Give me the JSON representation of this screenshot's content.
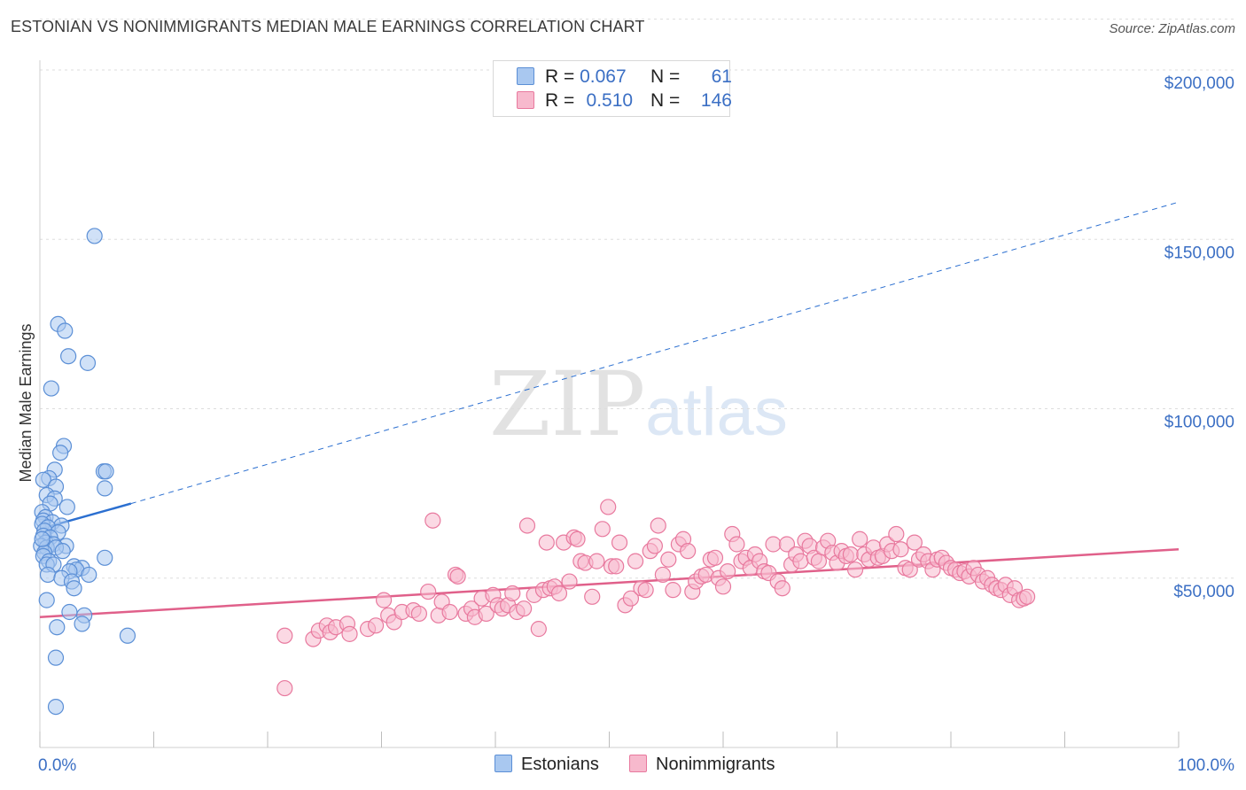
{
  "header": {
    "title": "ESTONIAN VS NONIMMIGRANTS MEDIAN MALE EARNINGS CORRELATION CHART",
    "source": "Source: ZipAtlas.com"
  },
  "watermark": {
    "zip": "ZIP",
    "atlas": "atlas"
  },
  "legend": {
    "rows": [
      {
        "r_label": "R =",
        "r_value": "0.067",
        "n_label": "N =",
        "n_value": "61"
      },
      {
        "r_label": "R =",
        "r_value": "0.510",
        "n_label": "N =",
        "n_value": "146"
      }
    ]
  },
  "bottom_legend": {
    "estonians": "Estonians",
    "nonimmigrants": "Nonimmigrants"
  },
  "colors": {
    "blue_fill": "#a9c8f0",
    "blue_stroke": "#5b8fd6",
    "blue_line": "#2b6fd0",
    "pink_fill": "#f7b9cd",
    "pink_stroke": "#e8799e",
    "pink_line": "#e0608a",
    "tick_text": "#3b6fc4",
    "grid": "#dddddd"
  },
  "chart_data": {
    "type": "scatter",
    "title": "ESTONIAN VS NONIMMIGRANTS MEDIAN MALE EARNINGS CORRELATION CHART",
    "ylabel": "Median Male Earnings",
    "xlabel": "",
    "xlim": [
      0,
      100
    ],
    "ylim": [
      0,
      215000
    ],
    "x_ticks": [
      0,
      10,
      20,
      30,
      40,
      50,
      60,
      70,
      80,
      90,
      100
    ],
    "x_tick_labels": [
      {
        "value": 0,
        "label": "0.0%"
      },
      {
        "value": 100,
        "label": "100.0%"
      }
    ],
    "y_ticks": [
      {
        "value": 50000,
        "label": "$50,000"
      },
      {
        "value": 100000,
        "label": "$100,000"
      },
      {
        "value": 150000,
        "label": "$150,000"
      },
      {
        "value": 200000,
        "label": "$200,000"
      }
    ],
    "grid": true,
    "series": [
      {
        "name": "Estonians",
        "color": "blue",
        "trend": {
          "solid": [
            [
              0,
              64500
            ],
            [
              8,
              72000
            ]
          ],
          "dashed": [
            [
              8,
              72000
            ],
            [
              100,
              161000
            ]
          ]
        },
        "points": [
          [
            4.8,
            151000
          ],
          [
            1.6,
            125000
          ],
          [
            2.2,
            123000
          ],
          [
            2.5,
            115500
          ],
          [
            4.2,
            113500
          ],
          [
            1.0,
            106000
          ],
          [
            2.1,
            89000
          ],
          [
            1.8,
            87000
          ],
          [
            1.3,
            82000
          ],
          [
            5.6,
            81500
          ],
          [
            5.8,
            81500
          ],
          [
            0.8,
            79500
          ],
          [
            0.3,
            79000
          ],
          [
            1.4,
            77000
          ],
          [
            5.7,
            76500
          ],
          [
            0.6,
            74500
          ],
          [
            1.3,
            73500
          ],
          [
            0.9,
            72000
          ],
          [
            2.4,
            71000
          ],
          [
            0.2,
            69500
          ],
          [
            0.5,
            68000
          ],
          [
            0.3,
            67000
          ],
          [
            1.1,
            66500
          ],
          [
            0.2,
            66000
          ],
          [
            1.9,
            65500
          ],
          [
            0.7,
            65000
          ],
          [
            0.4,
            64000
          ],
          [
            1.6,
            63500
          ],
          [
            0.3,
            62500
          ],
          [
            0.9,
            62000
          ],
          [
            0.5,
            60500
          ],
          [
            1.2,
            60000
          ],
          [
            0.1,
            59500
          ],
          [
            2.3,
            59500
          ],
          [
            0.6,
            59000
          ],
          [
            1.4,
            59000
          ],
          [
            2.0,
            58000
          ],
          [
            0.4,
            57500
          ],
          [
            0.3,
            56500
          ],
          [
            5.7,
            56000
          ],
          [
            0.8,
            55000
          ],
          [
            0.6,
            54000
          ],
          [
            1.2,
            54000
          ],
          [
            3.0,
            53500
          ],
          [
            3.7,
            53000
          ],
          [
            3.2,
            52500
          ],
          [
            2.6,
            52000
          ],
          [
            0.7,
            51000
          ],
          [
            4.3,
            51000
          ],
          [
            1.9,
            50000
          ],
          [
            2.8,
            49000
          ],
          [
            3.0,
            47000
          ],
          [
            0.6,
            43500
          ],
          [
            2.6,
            40000
          ],
          [
            3.9,
            39000
          ],
          [
            3.7,
            36500
          ],
          [
            1.5,
            35500
          ],
          [
            7.7,
            33000
          ],
          [
            1.4,
            26500
          ],
          [
            1.4,
            12000
          ],
          [
            0.2,
            61500
          ]
        ]
      },
      {
        "name": "Nonimmigrants",
        "color": "pink",
        "trend": {
          "solid": [
            [
              0,
              38500
            ],
            [
              100,
              58500
            ]
          ]
        },
        "points": [
          [
            21.5,
            17500
          ],
          [
            21.5,
            33000
          ],
          [
            24.0,
            32000
          ],
          [
            24.5,
            34500
          ],
          [
            25.2,
            36000
          ],
          [
            25.5,
            34000
          ],
          [
            26.0,
            35500
          ],
          [
            27.0,
            36500
          ],
          [
            27.2,
            33500
          ],
          [
            28.8,
            35000
          ],
          [
            29.5,
            36000
          ],
          [
            30.2,
            43500
          ],
          [
            30.6,
            39000
          ],
          [
            31.1,
            37000
          ],
          [
            31.8,
            40000
          ],
          [
            32.8,
            40500
          ],
          [
            33.3,
            39500
          ],
          [
            34.1,
            46000
          ],
          [
            34.5,
            67000
          ],
          [
            35.0,
            39000
          ],
          [
            35.3,
            43000
          ],
          [
            36.0,
            40000
          ],
          [
            36.5,
            51000
          ],
          [
            36.7,
            50500
          ],
          [
            37.4,
            39500
          ],
          [
            37.9,
            41000
          ],
          [
            38.2,
            38500
          ],
          [
            38.8,
            44000
          ],
          [
            39.2,
            39500
          ],
          [
            39.8,
            45000
          ],
          [
            40.2,
            42000
          ],
          [
            40.6,
            41000
          ],
          [
            41.1,
            42000
          ],
          [
            41.5,
            45500
          ],
          [
            41.9,
            40000
          ],
          [
            42.5,
            41000
          ],
          [
            42.8,
            65500
          ],
          [
            43.4,
            45000
          ],
          [
            43.8,
            35000
          ],
          [
            44.2,
            46500
          ],
          [
            44.5,
            60500
          ],
          [
            44.8,
            47000
          ],
          [
            45.2,
            47500
          ],
          [
            45.6,
            45500
          ],
          [
            46.0,
            60500
          ],
          [
            46.5,
            49000
          ],
          [
            46.9,
            62000
          ],
          [
            47.2,
            61500
          ],
          [
            47.5,
            55000
          ],
          [
            47.9,
            54500
          ],
          [
            48.5,
            44500
          ],
          [
            48.9,
            55000
          ],
          [
            49.4,
            64500
          ],
          [
            49.9,
            71000
          ],
          [
            50.2,
            53500
          ],
          [
            50.6,
            53500
          ],
          [
            50.9,
            60500
          ],
          [
            51.4,
            42000
          ],
          [
            51.9,
            44000
          ],
          [
            52.3,
            55000
          ],
          [
            52.8,
            47000
          ],
          [
            53.2,
            46500
          ],
          [
            53.6,
            58000
          ],
          [
            54.0,
            59500
          ],
          [
            54.3,
            65500
          ],
          [
            54.7,
            51000
          ],
          [
            55.2,
            55500
          ],
          [
            55.6,
            46500
          ],
          [
            56.1,
            60000
          ],
          [
            56.5,
            61500
          ],
          [
            56.9,
            58000
          ],
          [
            57.3,
            46000
          ],
          [
            57.6,
            49000
          ],
          [
            58.1,
            50500
          ],
          [
            58.5,
            51000
          ],
          [
            58.9,
            55500
          ],
          [
            59.3,
            56000
          ],
          [
            59.6,
            50000
          ],
          [
            60.0,
            47500
          ],
          [
            60.4,
            52000
          ],
          [
            60.8,
            63000
          ],
          [
            61.2,
            60000
          ],
          [
            61.6,
            55000
          ],
          [
            62.0,
            56000
          ],
          [
            62.4,
            53000
          ],
          [
            62.8,
            57000
          ],
          [
            63.2,
            55000
          ],
          [
            63.6,
            52000
          ],
          [
            64.0,
            51500
          ],
          [
            64.4,
            60000
          ],
          [
            64.8,
            49000
          ],
          [
            65.2,
            47000
          ],
          [
            65.6,
            60000
          ],
          [
            66.0,
            54000
          ],
          [
            66.4,
            57000
          ],
          [
            66.8,
            55000
          ],
          [
            67.2,
            61000
          ],
          [
            67.6,
            59500
          ],
          [
            68.0,
            56000
          ],
          [
            68.4,
            55000
          ],
          [
            68.8,
            59000
          ],
          [
            69.2,
            61000
          ],
          [
            69.6,
            57500
          ],
          [
            70.0,
            54500
          ],
          [
            70.4,
            58000
          ],
          [
            70.8,
            56500
          ],
          [
            71.2,
            57000
          ],
          [
            71.6,
            52500
          ],
          [
            72.0,
            61500
          ],
          [
            72.4,
            57000
          ],
          [
            72.8,
            55500
          ],
          [
            73.2,
            59000
          ],
          [
            73.6,
            56000
          ],
          [
            74.0,
            56500
          ],
          [
            74.4,
            60000
          ],
          [
            74.8,
            58000
          ],
          [
            75.2,
            63000
          ],
          [
            75.6,
            58500
          ],
          [
            76.0,
            53000
          ],
          [
            76.4,
            52500
          ],
          [
            76.8,
            60500
          ],
          [
            77.2,
            55500
          ],
          [
            77.6,
            57000
          ],
          [
            78.0,
            55000
          ],
          [
            78.4,
            52500
          ],
          [
            78.8,
            55500
          ],
          [
            79.2,
            56000
          ],
          [
            79.6,
            54500
          ],
          [
            80.0,
            53000
          ],
          [
            80.4,
            52500
          ],
          [
            80.8,
            51500
          ],
          [
            81.2,
            52000
          ],
          [
            81.6,
            50500
          ],
          [
            82.0,
            53000
          ],
          [
            82.4,
            51000
          ],
          [
            82.8,
            49000
          ],
          [
            83.2,
            50000
          ],
          [
            83.6,
            48000
          ],
          [
            84.0,
            47000
          ],
          [
            84.4,
            46500
          ],
          [
            84.8,
            48000
          ],
          [
            85.2,
            45000
          ],
          [
            85.6,
            47000
          ],
          [
            86.0,
            43500
          ],
          [
            86.4,
            44000
          ],
          [
            86.7,
            44500
          ]
        ]
      }
    ]
  }
}
